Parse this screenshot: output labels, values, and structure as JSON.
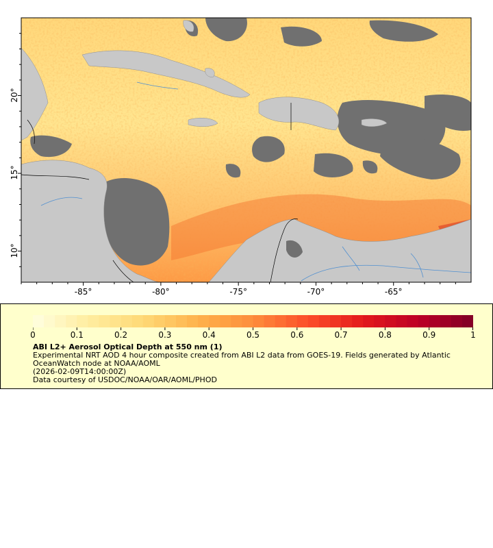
{
  "map": {
    "x_axis": {
      "ticks": [
        {
          "value": -85,
          "label": "-85°"
        },
        {
          "value": -80,
          "label": "-80°"
        },
        {
          "value": -75,
          "label": "-75°"
        },
        {
          "value": -70,
          "label": "-70°"
        },
        {
          "value": -65,
          "label": "-65°"
        }
      ],
      "range": [
        -89,
        -60
      ]
    },
    "y_axis": {
      "ticks": [
        {
          "value": 20,
          "label": "20°"
        },
        {
          "value": 15,
          "label": "15°"
        },
        {
          "value": 10,
          "label": "10°"
        }
      ],
      "range": [
        8,
        25
      ]
    },
    "colors": {
      "land": "#c8c8c8",
      "no_data": "#707070",
      "border": "#000000",
      "river": "#4f8fd0"
    }
  },
  "legend": {
    "title": "ABI L2+ Aerosol Optical Depth at 550 nm (1)",
    "description": "Experimental NRT AOD 4 hour composite created from ABI L2 data from GOES-19. Fields generated by Atlantic OceanWatch node at NOAA/AOML",
    "timestamp": "(2026-02-09T14:00:00Z)",
    "credit": "Data courtesy of USDOC/NOAA/OAR/AOML/PHOD",
    "colorbar": {
      "min": 0,
      "max": 1,
      "ticks": [
        "0",
        "0.1",
        "0.2",
        "0.3",
        "0.4",
        "0.5",
        "0.6",
        "0.7",
        "0.8",
        "0.9",
        "1"
      ],
      "colors": [
        "#ffffe0",
        "#ffeda0",
        "#fed976",
        "#feb24c",
        "#fd8d3c",
        "#fc4e2a",
        "#e31a1c",
        "#bd0026",
        "#800026"
      ]
    }
  }
}
